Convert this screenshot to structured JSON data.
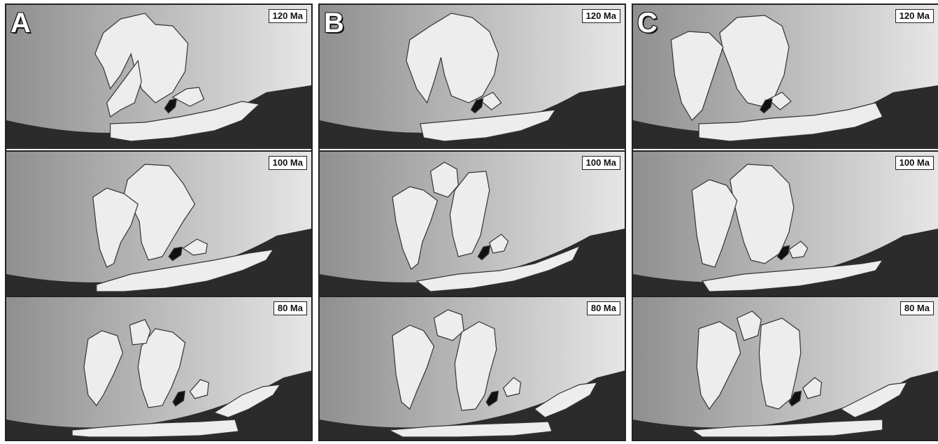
{
  "columns": [
    {
      "letter": "A",
      "panels": [
        {
          "age": "120 Ma"
        },
        {
          "age": "100 Ma"
        },
        {
          "age": "80 Ma"
        }
      ]
    },
    {
      "letter": "B",
      "panels": [
        {
          "age": "120 Ma"
        },
        {
          "age": "100 Ma"
        },
        {
          "age": "80 Ma"
        }
      ]
    },
    {
      "letter": "C",
      "panels": [
        {
          "age": "120 Ma"
        },
        {
          "age": "100 Ma"
        },
        {
          "age": "80 Ma"
        }
      ]
    }
  ],
  "colors": {
    "ocean_dark": "#8f8f8f",
    "ocean_light": "#e6e6e6",
    "land": "#ededed",
    "deep_earth": "#2b2b2b",
    "highlight_block": "#111111"
  }
}
